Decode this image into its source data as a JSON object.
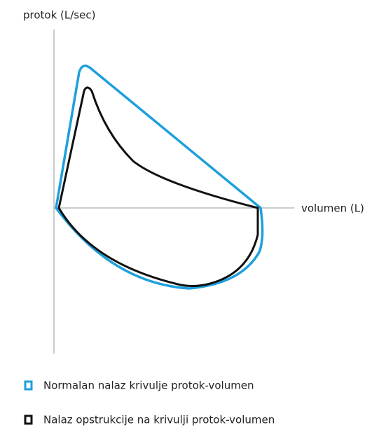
{
  "axes": {
    "y_label": "protok (L/sec)",
    "x_label": "volumen (L)"
  },
  "legend": {
    "items": [
      {
        "label": "Normalan nalaz krivulje protok-volumen"
      },
      {
        "label": "Nalaz opstrukcije na krivulji protok-volumen"
      }
    ]
  }
}
